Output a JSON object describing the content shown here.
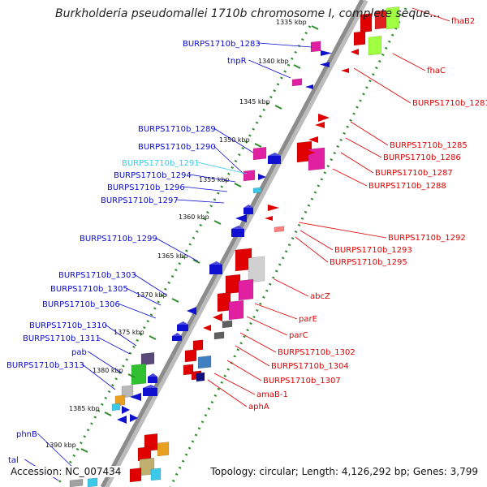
{
  "title": "Burkholderia pseudomallei 1710b chromosome I, complete seque...",
  "footer": {
    "accession": "Accession: NC_007434",
    "summary": "Topology: circular; Length: 4,126,292 bp; Genes: 3,799"
  },
  "colors": {
    "left_label": "#0a0ad0",
    "left_highlight": "#3cc8e8",
    "right_label": "#e00000",
    "backbone": "#8c8c8c",
    "tick": "#2e8b2e"
  },
  "kbp_ticks": [
    "1335 kbp",
    "1340 kbp",
    "1345 kbp",
    "1350 kbp",
    "1355 kbp",
    "1360 kbp",
    "1365 kbp",
    "1370 kbp",
    "1375 kbp",
    "1380 kbp",
    "1385 kbp",
    "1390 kbp"
  ],
  "left_labels": [
    {
      "text": "BURPS1710b_1283"
    },
    {
      "text": "tnpR"
    },
    {
      "text": "BURPS1710b_1289"
    },
    {
      "text": "BURPS1710b_1290"
    },
    {
      "text": "BURPS1710b_1291",
      "highlight": true
    },
    {
      "text": "BURPS1710b_1294"
    },
    {
      "text": "BURPS1710b_1296"
    },
    {
      "text": "BURPS1710b_1297"
    },
    {
      "text": "BURPS1710b_1299"
    },
    {
      "text": "BURPS1710b_1303"
    },
    {
      "text": "BURPS1710b_1305"
    },
    {
      "text": "BURPS1710b_1306"
    },
    {
      "text": "BURPS1710b_1310"
    },
    {
      "text": "BURPS1710b_1311"
    },
    {
      "text": "pab"
    },
    {
      "text": "BURPS1710b_1313"
    },
    {
      "text": "phnB"
    },
    {
      "text": "tal"
    }
  ],
  "right_labels": [
    {
      "text": "fhaB2"
    },
    {
      "text": "fhaC"
    },
    {
      "text": "BURPS1710b_1281"
    },
    {
      "text": "BURPS1710b_1285"
    },
    {
      "text": "BURPS1710b_1286"
    },
    {
      "text": "BURPS1710b_1287"
    },
    {
      "text": "BURPS1710b_1288"
    },
    {
      "text": "BURPS1710b_1292"
    },
    {
      "text": "BURPS1710b_1293"
    },
    {
      "text": "BURPS1710b_1295"
    },
    {
      "text": "abcZ"
    },
    {
      "text": "parE"
    },
    {
      "text": "parC"
    },
    {
      "text": "BURPS1710b_1302"
    },
    {
      "text": "BURPS1710b_1304"
    },
    {
      "text": "BURPS1710b_1307"
    },
    {
      "text": "amaB-1"
    },
    {
      "text": "aphA"
    }
  ]
}
